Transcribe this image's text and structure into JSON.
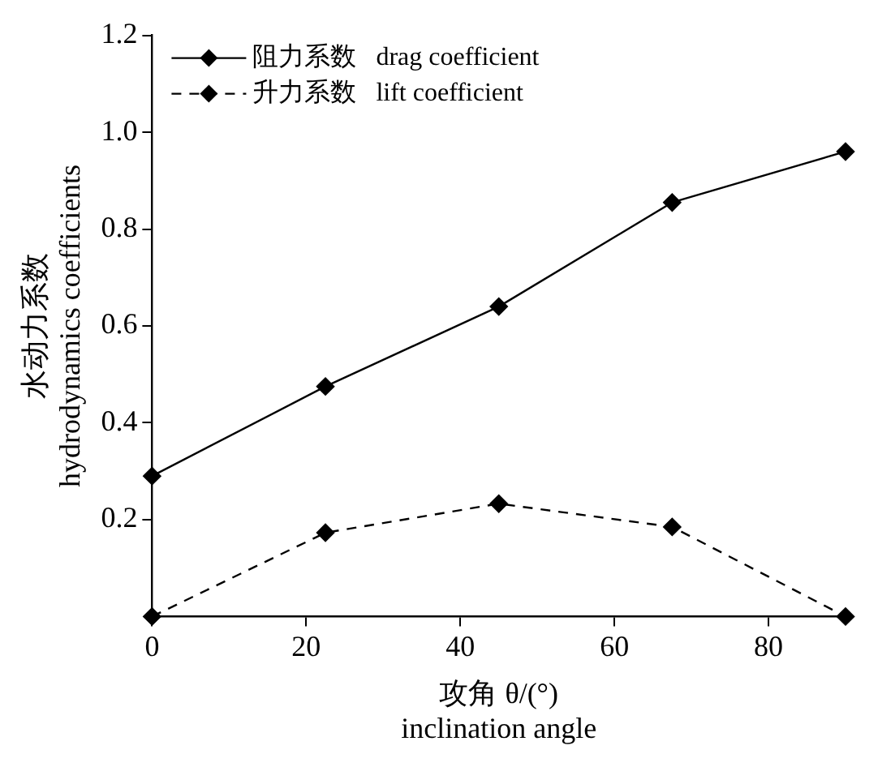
{
  "chart_data": {
    "type": "line",
    "xlabel": "攻角 θ/(°)\ninclination angle",
    "ylabel": "水动力系数\nhydrodynamics coefficients",
    "x": [
      0,
      22.5,
      45,
      67.5,
      90
    ],
    "series": [
      {
        "name": "阻力系数   drag coefficient",
        "color": "#000000",
        "values": [
          0.29,
          0.475,
          0.64,
          0.855,
          0.96
        ],
        "line_style": "solid"
      },
      {
        "name": "升力系数   lift coefficient",
        "color": "#000000",
        "values": [
          0,
          0.173,
          0.233,
          0.185,
          0
        ],
        "line_style": "dashed"
      }
    ],
    "marker": "diamond",
    "xlim": [
      0,
      90
    ],
    "xticks": [
      0,
      20,
      40,
      60,
      80
    ],
    "ylim": [
      0,
      1.2
    ],
    "yticks": [
      0.2,
      0.4,
      0.6,
      0.8,
      {
        "value": 1,
        "label": "1.0"
      },
      1.2
    ],
    "grid": false,
    "legend": "top left"
  }
}
